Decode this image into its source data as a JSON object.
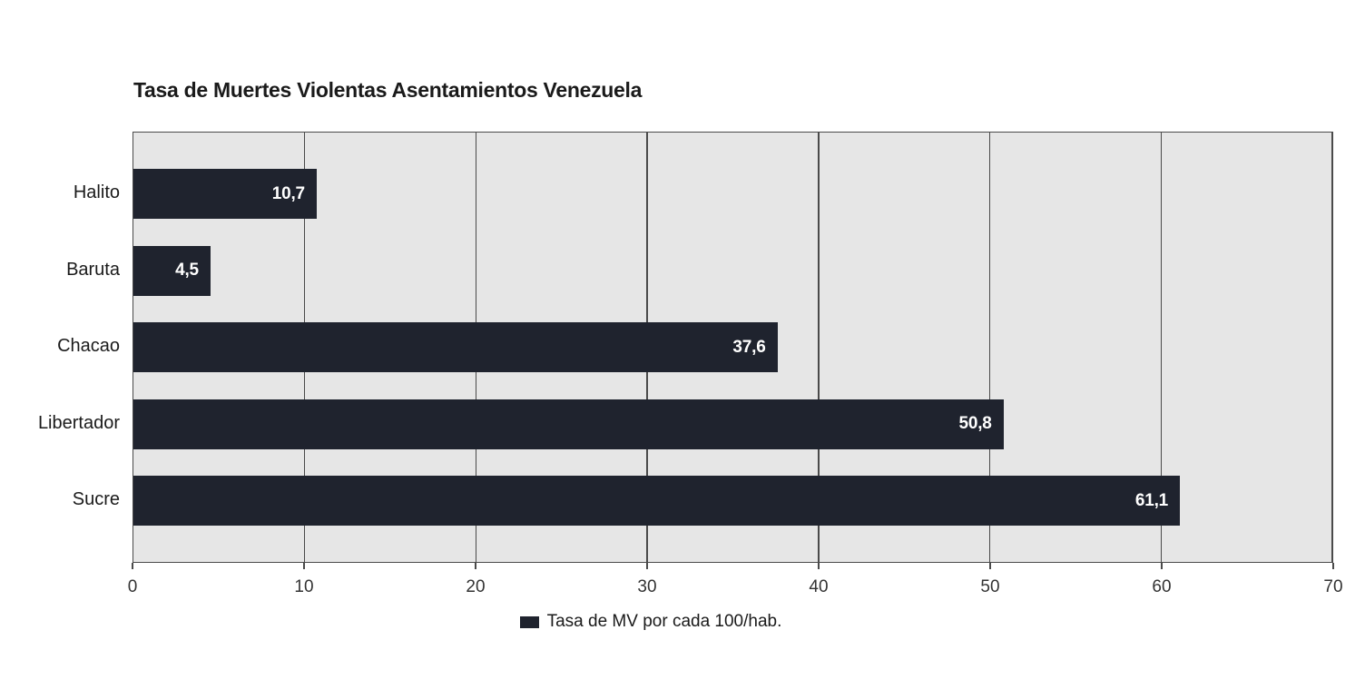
{
  "title": "Tasa de Muertes Violentas Asentamientos Venezuela",
  "legend": {
    "label": "Tasa de MV por cada 100/hab."
  },
  "colors": {
    "bar": "#1f232e",
    "plot_background": "#e6e6e6",
    "grid_line": "#4a4a4a",
    "value_label": "#ffffff",
    "text": "#1a1a1a"
  },
  "chart_data": {
    "type": "bar",
    "orientation": "horizontal",
    "title": "Tasa de Muertes Violentas Asentamientos Venezuela",
    "categories": [
      "Halito",
      "Baruta",
      "Chacao",
      "Libertador",
      "Sucre"
    ],
    "values": [
      10.7,
      4.5,
      37.6,
      50.8,
      61.1
    ],
    "value_labels": [
      "10,7",
      "4,5",
      "37,6",
      "50,8",
      "61,1"
    ],
    "xlabel": "",
    "ylabel": "",
    "xlim": [
      0,
      70
    ],
    "x_ticks": [
      0,
      10,
      20,
      30,
      40,
      50,
      60,
      70
    ],
    "x_tick_labels": [
      "0",
      "10",
      "20",
      "30",
      "40",
      "50",
      "60",
      "70"
    ],
    "grid": "vertical",
    "legend_entries": [
      "Tasa de MV por cada 100/hab."
    ],
    "legend_position": "bottom-center"
  }
}
